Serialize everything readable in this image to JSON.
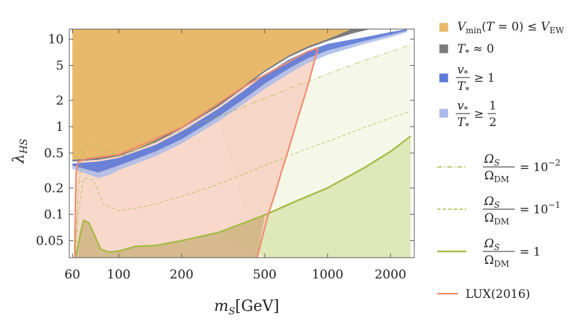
{
  "chart_data": {
    "type": "area",
    "title": "",
    "xlabel": "m_S[GeV]",
    "ylabel": "λ_HS",
    "xscale": "log",
    "yscale": "log",
    "xlim": [
      58,
      2600
    ],
    "ylim": [
      0.032,
      13
    ],
    "x_ticks": [
      60,
      100,
      200,
      500,
      1000,
      2000
    ],
    "y_ticks": [
      0.05,
      0.1,
      0.2,
      0.5,
      1,
      2,
      5,
      10
    ],
    "x_tick_labels": [
      "60",
      "100",
      "200",
      "500",
      "1000",
      "2000"
    ],
    "y_tick_labels": [
      "0.05",
      "0.1",
      "0.2",
      "0.5",
      "1",
      "2",
      "5",
      "10"
    ],
    "grid": false,
    "legend_position": "right",
    "colors": {
      "vmin": "#e8b96a",
      "tstar": "#7b7b7b",
      "vt1": "#5a78d6",
      "vthalf": "#aabbe8",
      "relic": "#a4bb45",
      "relic_fill": "#d6e3a8",
      "lux": "#f08c6c",
      "lux_fill": "#f6c7b6"
    },
    "legend": [
      {
        "key": "vmin",
        "style": "box",
        "text": "V_min(T = 0) ≤ V_EW"
      },
      {
        "key": "tstar",
        "style": "box",
        "text": "T_* ≈ 0"
      },
      {
        "key": "vt1",
        "style": "box",
        "text": "v_*/T_* ≥ 1"
      },
      {
        "key": "vthalf",
        "style": "box",
        "text": "v_*/T_* ≥ 1/2"
      },
      {
        "key": "relic",
        "style": "dotdash",
        "text": "Ω_S/Ω_DM = 10^−2"
      },
      {
        "key": "relic",
        "style": "dash",
        "text": "Ω_S/Ω_DM = 10^−1"
      },
      {
        "key": "relic",
        "style": "solid",
        "text": "Ω_S/Ω_DM = 1"
      },
      {
        "key": "lux",
        "style": "line",
        "text": "LUX(2016)"
      }
    ],
    "series": [
      {
        "name": "V_min(T = 0) ≤ V_EW",
        "role": "upper_region_boundary",
        "x": [
          60,
          70,
          80,
          90,
          100,
          120,
          150,
          200,
          250,
          300,
          400,
          500,
          650,
          800,
          1000,
          1300
        ],
        "y": [
          0.42,
          0.43,
          0.44,
          0.46,
          0.48,
          0.55,
          0.7,
          1.0,
          1.35,
          1.8,
          3.0,
          4.4,
          6.5,
          8.2,
          10.0,
          13
        ]
      },
      {
        "name": "T_* ≈ 0",
        "x": [
          60,
          80,
          100,
          150,
          200,
          300,
          400,
          500,
          650,
          800,
          1000,
          1300,
          1600
        ],
        "y": [
          0.4,
          0.42,
          0.46,
          0.66,
          0.95,
          1.7,
          2.8,
          4.2,
          6.2,
          7.8,
          9.5,
          11.5,
          13
        ]
      },
      {
        "name": "v_*/T_* ≥ 1",
        "x_upper": [
          60,
          80,
          100,
          150,
          200,
          300,
          400,
          500,
          650,
          800,
          1000,
          1500,
          2000,
          2400
        ],
        "y_upper": [
          0.38,
          0.4,
          0.44,
          0.62,
          0.88,
          1.6,
          2.6,
          3.9,
          5.8,
          7.3,
          8.8,
          10.5,
          12,
          13
        ],
        "x_lower": [
          60,
          80,
          90,
          100,
          150,
          200,
          300,
          400,
          500,
          650,
          800,
          1000,
          1500,
          2000,
          2400
        ],
        "y_lower": [
          0.36,
          0.3,
          0.33,
          0.36,
          0.52,
          0.72,
          1.3,
          2.1,
          3.1,
          4.6,
          6.0,
          7.4,
          9.5,
          11.2,
          12.5
        ]
      },
      {
        "name": "v_*/T_* ≥ 1/2",
        "x_lower": [
          60,
          80,
          90,
          100,
          150,
          200,
          300,
          400,
          500,
          650,
          800,
          1000,
          1500,
          2000,
          2400
        ],
        "y_lower": [
          0.33,
          0.26,
          0.28,
          0.32,
          0.46,
          0.64,
          1.15,
          1.85,
          2.7,
          4.0,
          5.3,
          6.6,
          8.8,
          10.5,
          12
        ]
      },
      {
        "name": "Ω_S/Ω_DM = 10^−2",
        "x": [
          62,
          64,
          68,
          75,
          85,
          100,
          130,
          200,
          300,
          500,
          700,
          1000,
          1500,
          2000,
          2500
        ],
        "y": [
          0.035,
          0.2,
          0.6,
          0.65,
          0.55,
          0.45,
          0.58,
          0.9,
          1.3,
          2.1,
          2.9,
          4.0,
          5.7,
          7.2,
          8.6
        ]
      },
      {
        "name": "Ω_S/Ω_DM = 10^−1",
        "x": [
          62,
          64,
          68,
          75,
          85,
          100,
          130,
          200,
          300,
          500,
          700,
          1000,
          1500,
          2000,
          2500
        ],
        "y": [
          0.035,
          0.1,
          0.26,
          0.25,
          0.13,
          0.11,
          0.12,
          0.16,
          0.22,
          0.36,
          0.5,
          0.68,
          0.98,
          1.25,
          1.5
        ]
      },
      {
        "name": "Ω_S/Ω_DM = 1",
        "x": [
          62,
          64,
          66,
          68,
          72,
          76,
          82,
          90,
          100,
          120,
          150,
          200,
          300,
          500,
          700,
          1000,
          1500,
          2000,
          2500
        ],
        "y": [
          0.032,
          0.045,
          0.065,
          0.085,
          0.08,
          0.06,
          0.04,
          0.037,
          0.038,
          0.043,
          0.044,
          0.05,
          0.062,
          0.098,
          0.14,
          0.2,
          0.34,
          0.52,
          0.78
        ]
      },
      {
        "name": "LUX(2016)",
        "x": [
          61.5,
          62,
          62.5,
          64,
          70,
          100,
          200,
          400,
          800,
          900
        ],
        "y": [
          0.032,
          0.1,
          0.3,
          0.4,
          0.43,
          0.48,
          0.98,
          2.9,
          7.2,
          8.0
        ],
        "x_right": [
          460,
          520,
          560,
          600,
          650,
          700,
          800,
          900
        ],
        "y_right": [
          0.032,
          0.1,
          0.17,
          0.3,
          0.55,
          1.0,
          2.8,
          8.0
        ]
      }
    ]
  }
}
